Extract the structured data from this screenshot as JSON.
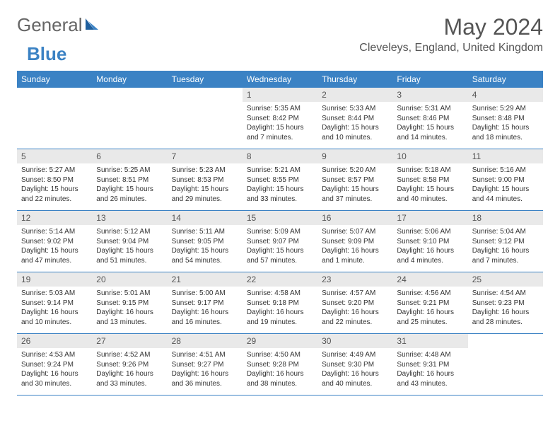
{
  "brand": {
    "general": "General",
    "blue": "Blue"
  },
  "title": "May 2024",
  "location": "Cleveleys, England, United Kingdom",
  "colors": {
    "accent": "#3b82c4",
    "dayHeaderBg": "#e9e9e9",
    "text": "#333333"
  },
  "day_headers": [
    "Sunday",
    "Monday",
    "Tuesday",
    "Wednesday",
    "Thursday",
    "Friday",
    "Saturday"
  ],
  "weeks": [
    [
      {
        "n": "",
        "sr": "",
        "ss": "",
        "dl": ""
      },
      {
        "n": "",
        "sr": "",
        "ss": "",
        "dl": ""
      },
      {
        "n": "",
        "sr": "",
        "ss": "",
        "dl": ""
      },
      {
        "n": "1",
        "sr": "Sunrise: 5:35 AM",
        "ss": "Sunset: 8:42 PM",
        "dl": "Daylight: 15 hours and 7 minutes."
      },
      {
        "n": "2",
        "sr": "Sunrise: 5:33 AM",
        "ss": "Sunset: 8:44 PM",
        "dl": "Daylight: 15 hours and 10 minutes."
      },
      {
        "n": "3",
        "sr": "Sunrise: 5:31 AM",
        "ss": "Sunset: 8:46 PM",
        "dl": "Daylight: 15 hours and 14 minutes."
      },
      {
        "n": "4",
        "sr": "Sunrise: 5:29 AM",
        "ss": "Sunset: 8:48 PM",
        "dl": "Daylight: 15 hours and 18 minutes."
      }
    ],
    [
      {
        "n": "5",
        "sr": "Sunrise: 5:27 AM",
        "ss": "Sunset: 8:50 PM",
        "dl": "Daylight: 15 hours and 22 minutes."
      },
      {
        "n": "6",
        "sr": "Sunrise: 5:25 AM",
        "ss": "Sunset: 8:51 PM",
        "dl": "Daylight: 15 hours and 26 minutes."
      },
      {
        "n": "7",
        "sr": "Sunrise: 5:23 AM",
        "ss": "Sunset: 8:53 PM",
        "dl": "Daylight: 15 hours and 29 minutes."
      },
      {
        "n": "8",
        "sr": "Sunrise: 5:21 AM",
        "ss": "Sunset: 8:55 PM",
        "dl": "Daylight: 15 hours and 33 minutes."
      },
      {
        "n": "9",
        "sr": "Sunrise: 5:20 AM",
        "ss": "Sunset: 8:57 PM",
        "dl": "Daylight: 15 hours and 37 minutes."
      },
      {
        "n": "10",
        "sr": "Sunrise: 5:18 AM",
        "ss": "Sunset: 8:58 PM",
        "dl": "Daylight: 15 hours and 40 minutes."
      },
      {
        "n": "11",
        "sr": "Sunrise: 5:16 AM",
        "ss": "Sunset: 9:00 PM",
        "dl": "Daylight: 15 hours and 44 minutes."
      }
    ],
    [
      {
        "n": "12",
        "sr": "Sunrise: 5:14 AM",
        "ss": "Sunset: 9:02 PM",
        "dl": "Daylight: 15 hours and 47 minutes."
      },
      {
        "n": "13",
        "sr": "Sunrise: 5:12 AM",
        "ss": "Sunset: 9:04 PM",
        "dl": "Daylight: 15 hours and 51 minutes."
      },
      {
        "n": "14",
        "sr": "Sunrise: 5:11 AM",
        "ss": "Sunset: 9:05 PM",
        "dl": "Daylight: 15 hours and 54 minutes."
      },
      {
        "n": "15",
        "sr": "Sunrise: 5:09 AM",
        "ss": "Sunset: 9:07 PM",
        "dl": "Daylight: 15 hours and 57 minutes."
      },
      {
        "n": "16",
        "sr": "Sunrise: 5:07 AM",
        "ss": "Sunset: 9:09 PM",
        "dl": "Daylight: 16 hours and 1 minute."
      },
      {
        "n": "17",
        "sr": "Sunrise: 5:06 AM",
        "ss": "Sunset: 9:10 PM",
        "dl": "Daylight: 16 hours and 4 minutes."
      },
      {
        "n": "18",
        "sr": "Sunrise: 5:04 AM",
        "ss": "Sunset: 9:12 PM",
        "dl": "Daylight: 16 hours and 7 minutes."
      }
    ],
    [
      {
        "n": "19",
        "sr": "Sunrise: 5:03 AM",
        "ss": "Sunset: 9:14 PM",
        "dl": "Daylight: 16 hours and 10 minutes."
      },
      {
        "n": "20",
        "sr": "Sunrise: 5:01 AM",
        "ss": "Sunset: 9:15 PM",
        "dl": "Daylight: 16 hours and 13 minutes."
      },
      {
        "n": "21",
        "sr": "Sunrise: 5:00 AM",
        "ss": "Sunset: 9:17 PM",
        "dl": "Daylight: 16 hours and 16 minutes."
      },
      {
        "n": "22",
        "sr": "Sunrise: 4:58 AM",
        "ss": "Sunset: 9:18 PM",
        "dl": "Daylight: 16 hours and 19 minutes."
      },
      {
        "n": "23",
        "sr": "Sunrise: 4:57 AM",
        "ss": "Sunset: 9:20 PM",
        "dl": "Daylight: 16 hours and 22 minutes."
      },
      {
        "n": "24",
        "sr": "Sunrise: 4:56 AM",
        "ss": "Sunset: 9:21 PM",
        "dl": "Daylight: 16 hours and 25 minutes."
      },
      {
        "n": "25",
        "sr": "Sunrise: 4:54 AM",
        "ss": "Sunset: 9:23 PM",
        "dl": "Daylight: 16 hours and 28 minutes."
      }
    ],
    [
      {
        "n": "26",
        "sr": "Sunrise: 4:53 AM",
        "ss": "Sunset: 9:24 PM",
        "dl": "Daylight: 16 hours and 30 minutes."
      },
      {
        "n": "27",
        "sr": "Sunrise: 4:52 AM",
        "ss": "Sunset: 9:26 PM",
        "dl": "Daylight: 16 hours and 33 minutes."
      },
      {
        "n": "28",
        "sr": "Sunrise: 4:51 AM",
        "ss": "Sunset: 9:27 PM",
        "dl": "Daylight: 16 hours and 36 minutes."
      },
      {
        "n": "29",
        "sr": "Sunrise: 4:50 AM",
        "ss": "Sunset: 9:28 PM",
        "dl": "Daylight: 16 hours and 38 minutes."
      },
      {
        "n": "30",
        "sr": "Sunrise: 4:49 AM",
        "ss": "Sunset: 9:30 PM",
        "dl": "Daylight: 16 hours and 40 minutes."
      },
      {
        "n": "31",
        "sr": "Sunrise: 4:48 AM",
        "ss": "Sunset: 9:31 PM",
        "dl": "Daylight: 16 hours and 43 minutes."
      },
      {
        "n": "",
        "sr": "",
        "ss": "",
        "dl": ""
      }
    ]
  ]
}
